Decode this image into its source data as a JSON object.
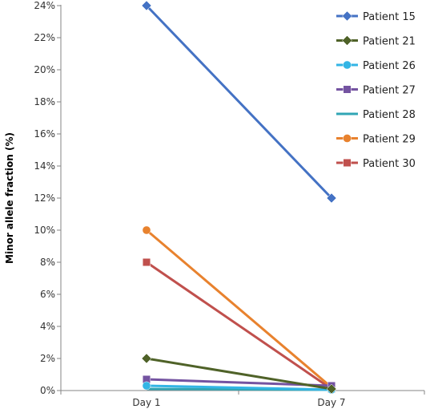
{
  "chart_data": {
    "type": "line",
    "categories": [
      "Day 1",
      "Day 7"
    ],
    "ylabel": "Minor allele fraction (%)",
    "xlabel": "",
    "ylim": [
      0,
      24
    ],
    "y_ticks": [
      "0%",
      "2%",
      "4%",
      "6%",
      "8%",
      "10%",
      "12%",
      "14%",
      "16%",
      "18%",
      "20%",
      "22%",
      "24%"
    ],
    "grid": "off",
    "legend_position": "right",
    "series": [
      {
        "name": "Patient 15",
        "values": [
          24,
          12
        ],
        "color": "#4472c4",
        "marker": "diamond"
      },
      {
        "name": "Patient 21",
        "values": [
          2,
          0.1
        ],
        "color": "#4f6228",
        "marker": "diamond"
      },
      {
        "name": "Patient 26",
        "values": [
          0.3,
          0.05
        ],
        "color": "#33b5e5",
        "marker": "circle"
      },
      {
        "name": "Patient 27",
        "values": [
          0.7,
          0.3
        ],
        "color": "#7453a1",
        "marker": "square"
      },
      {
        "name": "Patient 28",
        "values": [
          0.1,
          0.05
        ],
        "color": "#31a6b5",
        "marker": "none"
      },
      {
        "name": "Patient 29",
        "values": [
          10,
          0.2
        ],
        "color": "#e8822e",
        "marker": "circle"
      },
      {
        "name": "Patient 30",
        "values": [
          8,
          0.1
        ],
        "color": "#c0504d",
        "marker": "square"
      }
    ]
  }
}
